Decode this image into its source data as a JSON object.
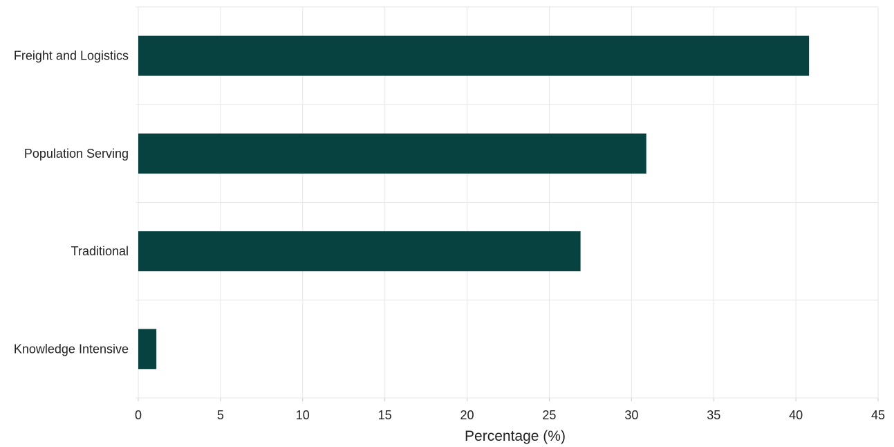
{
  "chart_data": {
    "type": "bar",
    "orientation": "horizontal",
    "categories": [
      "Freight and Logistics",
      "Population Serving",
      "Traditional",
      "Knowledge Intensive"
    ],
    "values": [
      40.8,
      30.9,
      26.9,
      1.1
    ],
    "title": "",
    "xlabel": "Percentage (%)",
    "ylabel": "",
    "xlim": [
      0,
      45
    ],
    "xticks": [
      0,
      5,
      10,
      15,
      20,
      25,
      30,
      35,
      40,
      45
    ],
    "grid": true,
    "legend": "none",
    "colors": {
      "bar": "#074240",
      "grid": "#e6e6e6",
      "text": "#222222"
    }
  }
}
